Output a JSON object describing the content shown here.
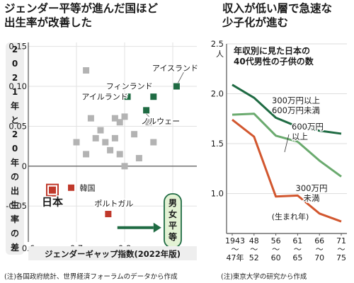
{
  "left": {
    "headline_lines": [
      "ジェンダー平等が進んだ国ほど",
      "出生率が改善した"
    ],
    "note": "(注)各国政府統計、世界経済フォーラムのデータから作成"
  },
  "right": {
    "headline_lines": [
      "収入が低い層で急速な",
      "少子化が進む"
    ],
    "note": "(注)東京大学の研究から作成"
  },
  "chart_data": [
    {
      "type": "scatter",
      "title": "",
      "xlabel": "ジェンダーギャップ指数(2022年版)",
      "ylabel": "2021年と20年の出生率の差",
      "xlim": [
        0.6,
        0.95
      ],
      "ylim": [
        -0.095,
        0.155
      ],
      "x_ticks": [
        "0.6",
        "0.7",
        "0.8",
        "0.9"
      ],
      "y_ticks": [
        "-0.05",
        "0",
        "0.05",
        "0.10",
        "0.15"
      ],
      "arrow_label": "男女平等",
      "colors": {
        "gray": "#b3b3b3",
        "green": "#1f6b43",
        "red": "#c0392b",
        "japan_fill": "#c0392b"
      },
      "points_gray": [
        {
          "x": 0.72,
          "y": 0.12
        },
        {
          "x": 0.73,
          "y": 0.06
        },
        {
          "x": 0.7,
          "y": 0.03
        },
        {
          "x": 0.72,
          "y": 0.015
        },
        {
          "x": 0.74,
          "y": 0.035
        },
        {
          "x": 0.75,
          "y": 0.045
        },
        {
          "x": 0.76,
          "y": 0.03
        },
        {
          "x": 0.78,
          "y": 0.035
        },
        {
          "x": 0.77,
          "y": 0.02
        },
        {
          "x": 0.78,
          "y": 0.06
        },
        {
          "x": 0.79,
          "y": 0.055
        },
        {
          "x": 0.8,
          "y": 0.062
        },
        {
          "x": 0.79,
          "y": 0.015
        },
        {
          "x": 0.8,
          "y": 0.0
        },
        {
          "x": 0.82,
          "y": 0.04
        },
        {
          "x": 0.83,
          "y": 0.01
        },
        {
          "x": 0.86,
          "y": 0.03
        },
        {
          "x": 0.85,
          "y": 0.055
        }
      ],
      "points_labeled": [
        {
          "name": "アイスランド",
          "x": 0.908,
          "y": 0.1,
          "color": "green"
        },
        {
          "name": "フィンランド",
          "x": 0.86,
          "y": 0.087,
          "color": "green"
        },
        {
          "name": "アイルランド",
          "x": 0.806,
          "y": 0.087,
          "color": "green"
        },
        {
          "name": "ノルウェー",
          "x": 0.845,
          "y": 0.07,
          "color": "green"
        },
        {
          "name": "韓国",
          "x": 0.689,
          "y": -0.027,
          "color": "red"
        },
        {
          "name": "ポルトガル",
          "x": 0.766,
          "y": -0.06,
          "color": "red"
        },
        {
          "name": "日本",
          "x": 0.65,
          "y": -0.03,
          "color": "japan"
        }
      ]
    },
    {
      "type": "line",
      "title": "年収別に見た日本の40代男性の子供の数",
      "title_lines": [
        "年収別に見た日本の",
        "40代男性の子供の数"
      ],
      "xlabel": "(生まれ年)",
      "ylabel": "",
      "unit": "人",
      "ylim": [
        0.6,
        2.5
      ],
      "y_ticks": [
        "2.5",
        "2.0",
        "1.5",
        "1.0"
      ],
      "categories": [
        "1943〜47年",
        "48〜52",
        "56〜60",
        "61〜65",
        "66〜70",
        "71〜75"
      ],
      "category_lines": [
        [
          "1943",
          "〜",
          "47年"
        ],
        [
          "48",
          "〜",
          "52"
        ],
        [
          "56",
          "〜",
          "60"
        ],
        [
          "61",
          "〜",
          "65"
        ],
        [
          "66",
          "〜",
          "70"
        ],
        [
          "71",
          "〜",
          "75"
        ]
      ],
      "series": [
        {
          "name": "600万円以上",
          "name_lines": [
            "600万円",
            "以上"
          ],
          "color": "#1f6b43",
          "values": [
            2.09,
            1.96,
            1.76,
            1.67,
            1.63,
            1.6
          ]
        },
        {
          "name": "300万円以上600万円未満",
          "name_lines": [
            "300万円以上",
            "600万円未満"
          ],
          "color": "#6aaa6e",
          "values": [
            1.79,
            1.8,
            1.58,
            1.52,
            1.33,
            1.17
          ]
        },
        {
          "name": "300万円未満",
          "name_lines": [
            "300万円",
            "未満"
          ],
          "color": "#d2572f",
          "values": [
            1.74,
            1.57,
            0.97,
            0.98,
            0.8,
            0.72
          ]
        }
      ]
    }
  ]
}
